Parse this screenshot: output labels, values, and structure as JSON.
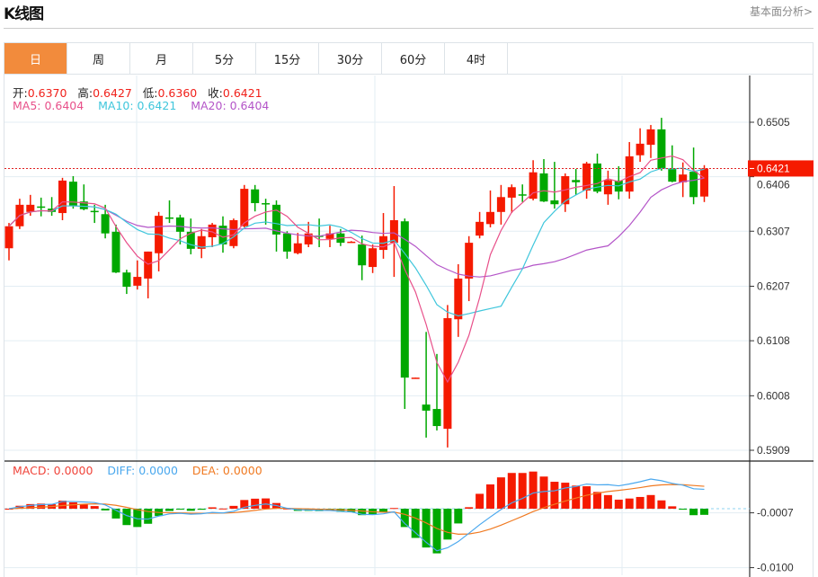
{
  "header": {
    "title": "K线图",
    "fundamental_link": "基本面分析>"
  },
  "tabs": [
    {
      "label": "日",
      "active": true
    },
    {
      "label": "周"
    },
    {
      "label": "月"
    },
    {
      "label": "5分"
    },
    {
      "label": "15分"
    },
    {
      "label": "30分"
    },
    {
      "label": "60分"
    },
    {
      "label": "4时"
    }
  ],
  "ohlc_legend": {
    "open_label": "开:",
    "open": "0.6370",
    "high_label": "高:",
    "high": "0.6427",
    "low_label": "低:",
    "low": "0.6360",
    "close_label": "收:",
    "close": "0.6421"
  },
  "ma_legend": {
    "ma5": "MA5: 0.6404",
    "ma10": "MA10: 0.6421",
    "ma20": "MA20: 0.6404"
  },
  "macd_legend": {
    "macd": "MACD: 0.0000",
    "diff": "DIFF: 0.0000",
    "dea": "DEA: 0.0000"
  },
  "colors": {
    "up": "#f51a00",
    "down": "#00a800",
    "ma5": "#e8508a",
    "ma10": "#3fc6dc",
    "ma20": "#b455c8",
    "diff": "#4aa8ee",
    "dea": "#f07a22",
    "accent": "#f28b3c"
  },
  "chart_data": {
    "type": "candlestick",
    "price_axis_ticks": [
      "0.6505",
      "0.6406",
      "0.6307",
      "0.6207",
      "0.6108",
      "0.6008",
      "0.5909"
    ],
    "price_ylim": [
      0.589,
      0.659
    ],
    "current_price": "0.6421",
    "macd_axis_ticks": [
      "-0.0007",
      "-0.0100"
    ],
    "macd_ylim": [
      -0.0112,
      0.0078
    ],
    "ohlc": [
      [
        0.6276,
        0.6322,
        0.6254,
        0.6316
      ],
      [
        0.6316,
        0.6366,
        0.6311,
        0.6355
      ],
      [
        0.6342,
        0.6373,
        0.6335,
        0.6355
      ],
      [
        0.6352,
        0.6368,
        0.6334,
        0.6351
      ],
      [
        0.6348,
        0.6369,
        0.6335,
        0.6342
      ],
      [
        0.634,
        0.6404,
        0.6327,
        0.6399
      ],
      [
        0.6397,
        0.6407,
        0.6348,
        0.6353
      ],
      [
        0.6361,
        0.6392,
        0.6345,
        0.6347
      ],
      [
        0.6344,
        0.6355,
        0.6322,
        0.6343
      ],
      [
        0.6338,
        0.6355,
        0.6294,
        0.6303
      ],
      [
        0.6306,
        0.6319,
        0.6231,
        0.6232
      ],
      [
        0.6232,
        0.6237,
        0.6193,
        0.6206
      ],
      [
        0.6208,
        0.6254,
        0.6201,
        0.6224
      ],
      [
        0.6221,
        0.627,
        0.6185,
        0.627
      ],
      [
        0.6267,
        0.6342,
        0.6234,
        0.6335
      ],
      [
        0.6332,
        0.6363,
        0.6322,
        0.6331
      ],
      [
        0.6332,
        0.6337,
        0.6283,
        0.6306
      ],
      [
        0.6306,
        0.633,
        0.6265,
        0.6275
      ],
      [
        0.6275,
        0.6311,
        0.6258,
        0.6298
      ],
      [
        0.6296,
        0.6322,
        0.6278,
        0.6319
      ],
      [
        0.6317,
        0.6334,
        0.6268,
        0.6283
      ],
      [
        0.628,
        0.633,
        0.6276,
        0.6327
      ],
      [
        0.6316,
        0.6391,
        0.6314,
        0.6384
      ],
      [
        0.6383,
        0.6391,
        0.6343,
        0.6358
      ],
      [
        0.6358,
        0.6366,
        0.6319,
        0.6357
      ],
      [
        0.6355,
        0.6363,
        0.627,
        0.6301
      ],
      [
        0.6303,
        0.6307,
        0.6257,
        0.627
      ],
      [
        0.6267,
        0.6304,
        0.6265,
        0.6285
      ],
      [
        0.6283,
        0.6324,
        0.6278,
        0.6303
      ],
      [
        0.6299,
        0.633,
        0.6278,
        0.6298
      ],
      [
        0.6293,
        0.6317,
        0.6278,
        0.6303
      ],
      [
        0.6303,
        0.6311,
        0.628,
        0.6286
      ],
      [
        0.6287,
        0.6289,
        0.6286,
        0.6288
      ],
      [
        0.6283,
        0.6299,
        0.6218,
        0.6245
      ],
      [
        0.6242,
        0.6283,
        0.6231,
        0.6276
      ],
      [
        0.6273,
        0.634,
        0.6257,
        0.6298
      ],
      [
        0.6286,
        0.6389,
        0.6224,
        0.6327
      ],
      [
        0.6325,
        0.633,
        0.5984,
        0.6041
      ],
      [
        0.604,
        0.6041,
        0.604,
        0.6041
      ],
      [
        0.5992,
        0.6124,
        0.5932,
        0.5981
      ],
      [
        0.5984,
        0.6084,
        0.5945,
        0.5953
      ],
      [
        0.5948,
        0.6173,
        0.5914,
        0.6149
      ],
      [
        0.6147,
        0.6247,
        0.6115,
        0.6221
      ],
      [
        0.6221,
        0.6298,
        0.618,
        0.6286
      ],
      [
        0.6299,
        0.6342,
        0.6294,
        0.6324
      ],
      [
        0.632,
        0.6381,
        0.6314,
        0.6342
      ],
      [
        0.6342,
        0.6391,
        0.6319,
        0.6369
      ],
      [
        0.6368,
        0.6392,
        0.634,
        0.6387
      ],
      [
        0.6374,
        0.6392,
        0.636,
        0.6372
      ],
      [
        0.6366,
        0.6436,
        0.6363,
        0.6414
      ],
      [
        0.6412,
        0.6438,
        0.636,
        0.6361
      ],
      [
        0.6363,
        0.6433,
        0.6348,
        0.6356
      ],
      [
        0.6356,
        0.6412,
        0.6342,
        0.6407
      ],
      [
        0.64,
        0.642,
        0.6373,
        0.6396
      ],
      [
        0.6381,
        0.6433,
        0.6366,
        0.643
      ],
      [
        0.643,
        0.6448,
        0.6376,
        0.6379
      ],
      [
        0.6374,
        0.6417,
        0.6355,
        0.64
      ],
      [
        0.6399,
        0.6425,
        0.6365,
        0.6379
      ],
      [
        0.6379,
        0.6469,
        0.6366,
        0.6443
      ],
      [
        0.6445,
        0.6494,
        0.6433,
        0.6466
      ],
      [
        0.6464,
        0.65,
        0.644,
        0.6492
      ],
      [
        0.6492,
        0.6513,
        0.6417,
        0.642
      ],
      [
        0.642,
        0.6463,
        0.6396,
        0.6397
      ],
      [
        0.6396,
        0.6432,
        0.6369,
        0.641
      ],
      [
        0.6415,
        0.6459,
        0.6356,
        0.6369
      ],
      [
        0.637,
        0.6427,
        0.636,
        0.6421
      ]
    ],
    "indicators": [
      "MA5",
      "MA10",
      "MA20",
      "MACD(12,26,9)"
    ]
  }
}
